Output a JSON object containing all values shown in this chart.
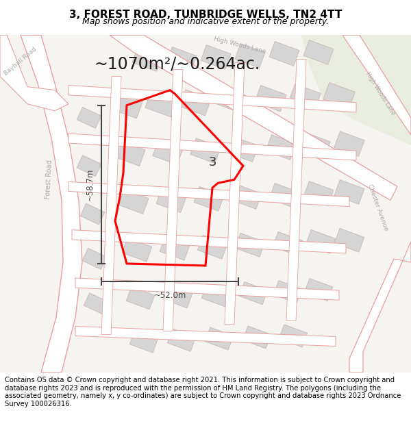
{
  "title_line1": "3, FOREST ROAD, TUNBRIDGE WELLS, TN2 4TT",
  "title_line2": "Map shows position and indicative extent of the property.",
  "area_label": "~1070m²/~0.264ac.",
  "property_number": "3",
  "dim_height": "~58.7m",
  "dim_width": "~52.0m",
  "footer_text": "Contains OS data © Crown copyright and database right 2021. This information is subject to Crown copyright and database rights 2023 and is reproduced with the permission of HM Land Registry. The polygons (including the associated geometry, namely x, y co-ordinates) are subject to Crown copyright and database rights 2023 Ordnance Survey 100026316.",
  "bg_color": "#f5f4f0",
  "green_color": "#e8ede0",
  "road_edge_color": "#e8a0a0",
  "road_fill_color": "#ffffff",
  "building_color": "#d5d5d5",
  "building_edge": "#c8b0b0",
  "property_color": "#ff0000",
  "dim_color": "#444444",
  "label_color": "#aaaaaa",
  "title_fontsize": 11,
  "subtitle_fontsize": 9,
  "area_fontsize": 17,
  "footer_fontsize": 7.2,
  "road_label_fontsize": 7
}
